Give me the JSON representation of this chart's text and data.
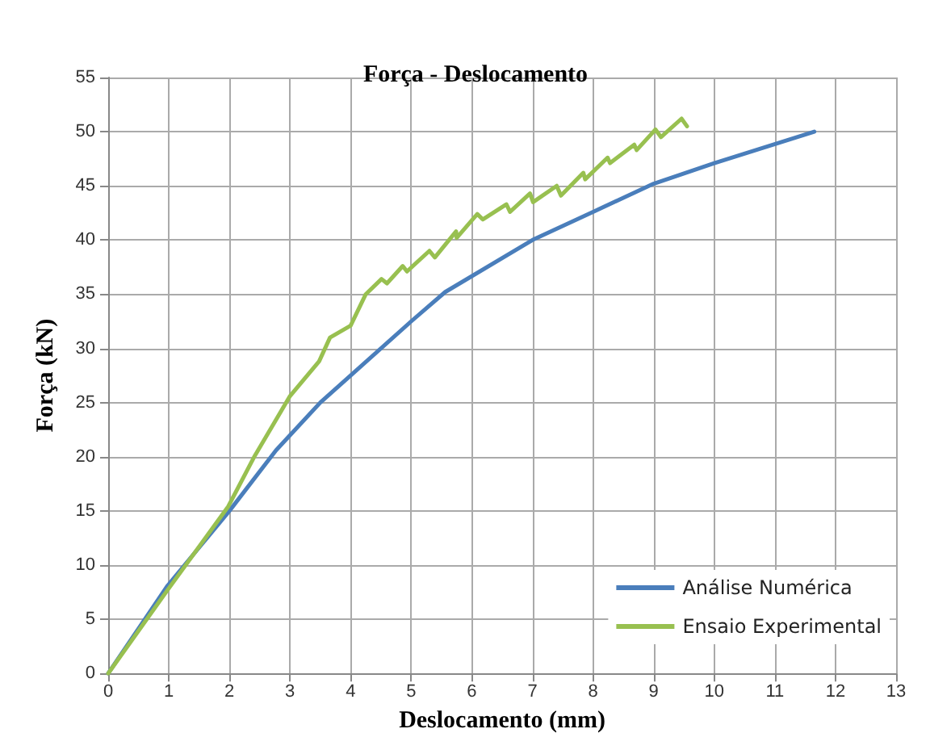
{
  "chart_data": {
    "type": "line",
    "title": "Força - Deslocamento",
    "xlabel": "Deslocamento (mm)",
    "ylabel": "Força (kN)",
    "xlim": [
      0,
      13
    ],
    "xticks": [
      0,
      1,
      2,
      3,
      4,
      5,
      6,
      7,
      8,
      9,
      10,
      11,
      12,
      13
    ],
    "ylim": [
      0,
      55
    ],
    "yticks": [
      0,
      5,
      10,
      15,
      20,
      25,
      30,
      35,
      40,
      45,
      50,
      55
    ],
    "grid": true,
    "legend": "bottom right",
    "marker": "none",
    "line_style": "solid",
    "series": [
      {
        "name": "Análise Numérica",
        "color": "#4a7ebb",
        "x": [
          0,
          0.98,
          2,
          2.77,
          3.5,
          4,
          5,
          5.56,
          7,
          8,
          9,
          10,
          11.65
        ],
        "values": [
          0,
          8.1,
          15,
          20.6,
          25,
          27.5,
          32.5,
          35.2,
          40,
          42.6,
          45.2,
          47.1,
          50
        ]
      },
      {
        "name": "Ensaio Experimental",
        "color": "#98c050",
        "x": [
          0,
          0.98,
          1.98,
          2.42,
          3,
          3.48,
          3.66,
          4,
          4.25,
          4.51,
          4.6,
          4.86,
          4.93,
          5.3,
          5.39,
          5.74,
          5.75,
          6.09,
          6.18,
          6.57,
          6.63,
          6.96,
          7.01,
          7.4,
          7.47,
          7.84,
          7.87,
          8.24,
          8.28,
          8.68,
          8.72,
          9.03,
          9.12,
          9.46,
          9.55
        ],
        "values": [
          0,
          7.7,
          15.4,
          20.1,
          25.6,
          28.8,
          31,
          32.1,
          35,
          36.4,
          36,
          37.6,
          37.1,
          39,
          38.4,
          40.8,
          40.2,
          42.4,
          41.9,
          43.3,
          42.6,
          44.3,
          43.5,
          45,
          44.1,
          46.2,
          45.6,
          47.6,
          47.1,
          48.8,
          48.3,
          50.2,
          49.5,
          51.2,
          50.5
        ]
      }
    ]
  }
}
